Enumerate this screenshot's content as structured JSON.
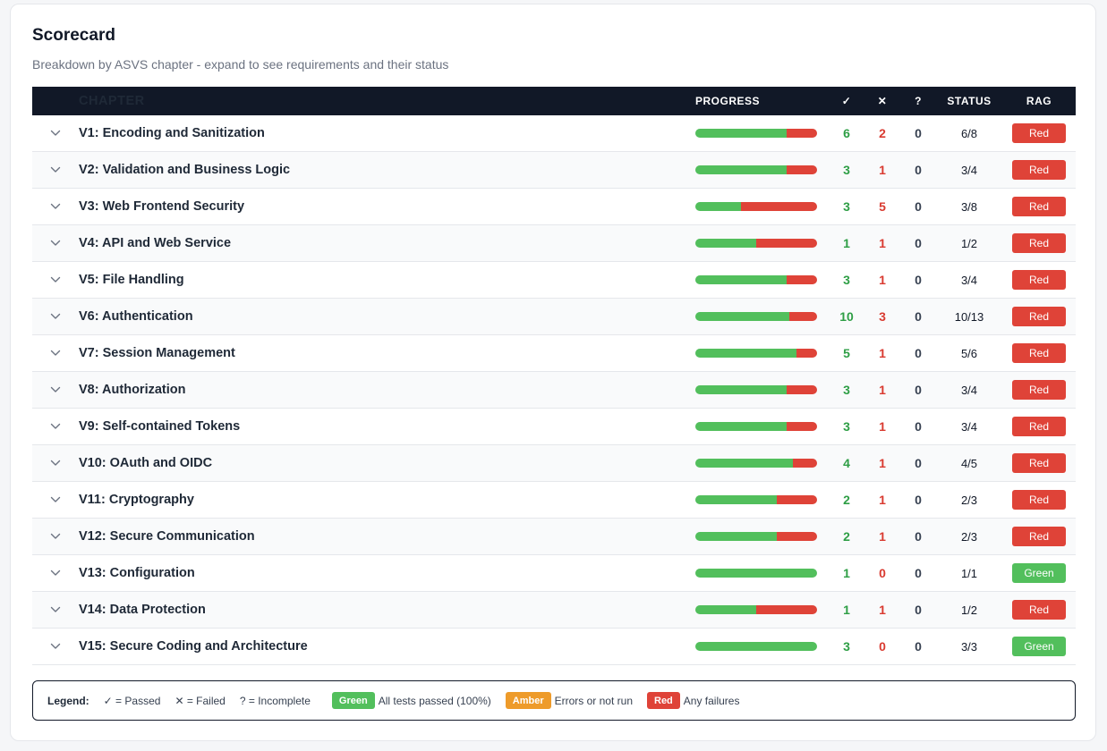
{
  "title": "Scorecard",
  "subtitle": "Breakdown by ASVS chapter - expand to see requirements and their status",
  "colors": {
    "green": "#52bf5c",
    "red": "#df4338",
    "amber": "#ee9b2a",
    "header_bg": "#111827"
  },
  "table": {
    "headers": {
      "chapter": "CHAPTER",
      "progress": "PROGRESS",
      "passed": "✓",
      "failed": "✕",
      "incomplete": "?",
      "status": "STATUS",
      "rag": "RAG"
    },
    "rows": [
      {
        "chapter": "V1: Encoding and Sanitization",
        "passed": "6",
        "failed": "2",
        "incomplete": "0",
        "status": "6/8",
        "rag": "Red"
      },
      {
        "chapter": "V2: Validation and Business Logic",
        "passed": "3",
        "failed": "1",
        "incomplete": "0",
        "status": "3/4",
        "rag": "Red"
      },
      {
        "chapter": "V3: Web Frontend Security",
        "passed": "3",
        "failed": "5",
        "incomplete": "0",
        "status": "3/8",
        "rag": "Red"
      },
      {
        "chapter": "V4: API and Web Service",
        "passed": "1",
        "failed": "1",
        "incomplete": "0",
        "status": "1/2",
        "rag": "Red"
      },
      {
        "chapter": "V5: File Handling",
        "passed": "3",
        "failed": "1",
        "incomplete": "0",
        "status": "3/4",
        "rag": "Red"
      },
      {
        "chapter": "V6: Authentication",
        "passed": "10",
        "failed": "3",
        "incomplete": "0",
        "status": "10/13",
        "rag": "Red"
      },
      {
        "chapter": "V7: Session Management",
        "passed": "5",
        "failed": "1",
        "incomplete": "0",
        "status": "5/6",
        "rag": "Red"
      },
      {
        "chapter": "V8: Authorization",
        "passed": "3",
        "failed": "1",
        "incomplete": "0",
        "status": "3/4",
        "rag": "Red"
      },
      {
        "chapter": "V9: Self-contained Tokens",
        "passed": "3",
        "failed": "1",
        "incomplete": "0",
        "status": "3/4",
        "rag": "Red"
      },
      {
        "chapter": "V10: OAuth and OIDC",
        "passed": "4",
        "failed": "1",
        "incomplete": "0",
        "status": "4/5",
        "rag": "Red"
      },
      {
        "chapter": "V11: Cryptography",
        "passed": "2",
        "failed": "1",
        "incomplete": "0",
        "status": "2/3",
        "rag": "Red"
      },
      {
        "chapter": "V12: Secure Communication",
        "passed": "2",
        "failed": "1",
        "incomplete": "0",
        "status": "2/3",
        "rag": "Red"
      },
      {
        "chapter": "V13: Configuration",
        "passed": "1",
        "failed": "0",
        "incomplete": "0",
        "status": "1/1",
        "rag": "Green"
      },
      {
        "chapter": "V14: Data Protection",
        "passed": "1",
        "failed": "1",
        "incomplete": "0",
        "status": "1/2",
        "rag": "Red"
      },
      {
        "chapter": "V15: Secure Coding and Architecture",
        "passed": "3",
        "failed": "0",
        "incomplete": "0",
        "status": "3/3",
        "rag": "Green"
      }
    ]
  },
  "legend": {
    "title": "Legend:",
    "passed": "✓ = Passed",
    "failed": "✕ = Failed",
    "incomplete": "? = Incomplete",
    "green_badge": "Green",
    "green_desc": "All tests passed (100%)",
    "amber_badge": "Amber",
    "amber_desc": "Errors or not run",
    "red_badge": "Red",
    "red_desc": "Any failures"
  }
}
